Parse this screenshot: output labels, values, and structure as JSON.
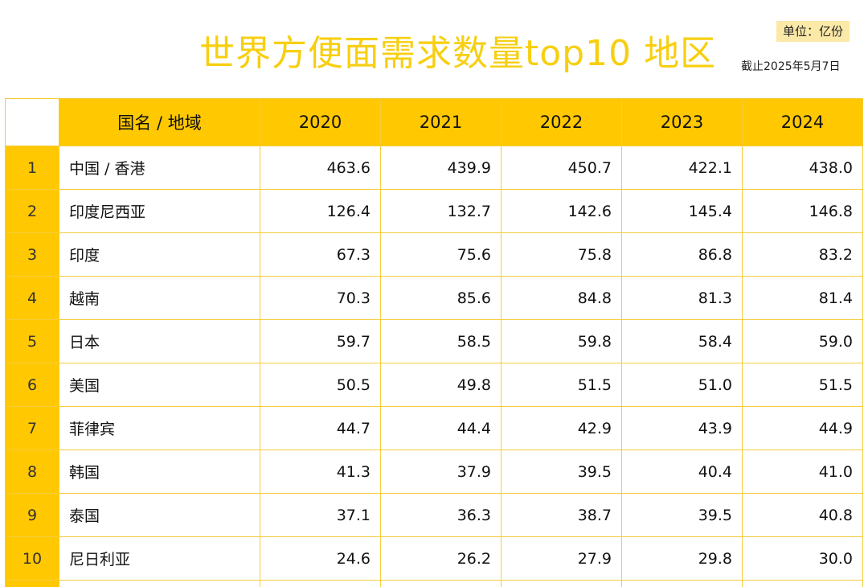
{
  "chart_data": {
    "type": "table",
    "title": "世界方便面需求数量top10 地区",
    "unit": "单位：亿份",
    "as_of": "截止2025年5月7日",
    "columns": [
      "国名 / 地域",
      "2020",
      "2021",
      "2022",
      "2023",
      "2024"
    ],
    "rows": [
      {
        "rank": "1",
        "name": "中国 / 香港",
        "values": [
          "463.6",
          "439.9",
          "450.7",
          "422.1",
          "438.0"
        ]
      },
      {
        "rank": "2",
        "name": "印度尼西亚",
        "values": [
          "126.4",
          "132.7",
          "142.6",
          "145.4",
          "146.8"
        ]
      },
      {
        "rank": "3",
        "name": "印度",
        "values": [
          "67.3",
          "75.6",
          "75.8",
          "86.8",
          "83.2"
        ]
      },
      {
        "rank": "4",
        "name": "越南",
        "values": [
          "70.3",
          "85.6",
          "84.8",
          "81.3",
          "81.4"
        ]
      },
      {
        "rank": "5",
        "name": "日本",
        "values": [
          "59.7",
          "58.5",
          "59.8",
          "58.4",
          "59.0"
        ]
      },
      {
        "rank": "6",
        "name": "美国",
        "values": [
          "50.5",
          "49.8",
          "51.5",
          "51.0",
          "51.5"
        ]
      },
      {
        "rank": "7",
        "name": "菲律宾",
        "values": [
          "44.7",
          "44.4",
          "42.9",
          "43.9",
          "44.9"
        ]
      },
      {
        "rank": "8",
        "name": "韩国",
        "values": [
          "41.3",
          "37.9",
          "39.5",
          "40.4",
          "41.0"
        ]
      },
      {
        "rank": "9",
        "name": "泰国",
        "values": [
          "37.1",
          "36.3",
          "38.7",
          "39.5",
          "40.8"
        ]
      },
      {
        "rank": "10",
        "name": "尼日利亚",
        "values": [
          "24.6",
          "26.2",
          "27.9",
          "29.8",
          "30.0"
        ]
      }
    ],
    "colors": {
      "header": "#ffc800",
      "title": "#f7cf10",
      "unit_bg": "#fbe9a8",
      "grid": "#f5cd3a"
    }
  }
}
